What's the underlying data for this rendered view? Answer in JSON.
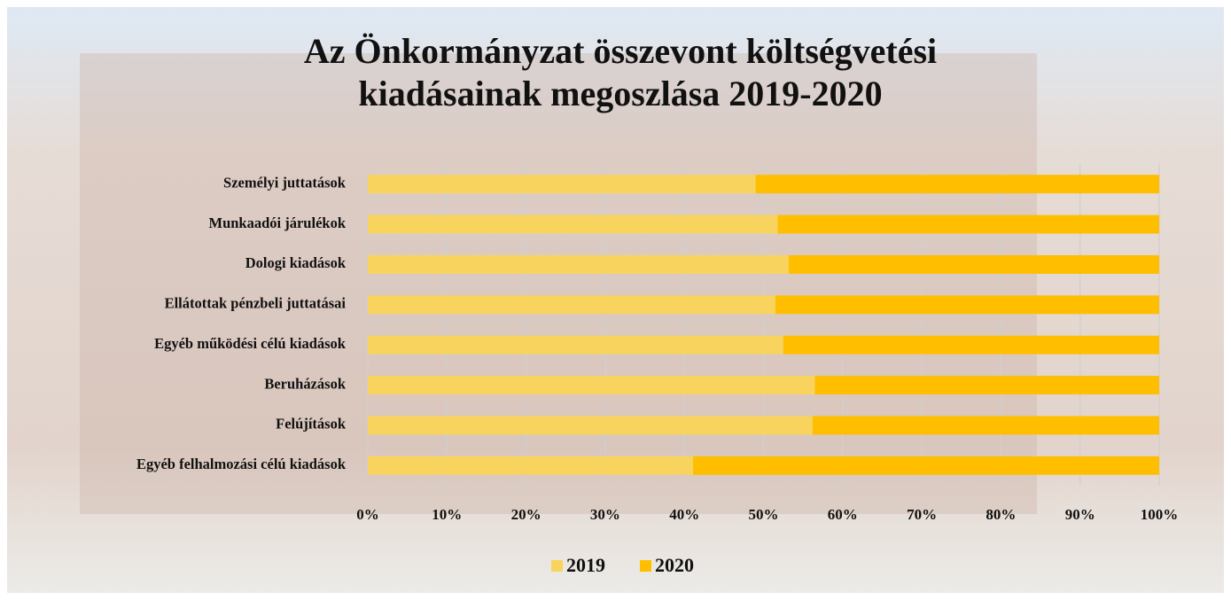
{
  "chart_data": {
    "type": "stacked-barh",
    "title": [
      "Az Önkormányzat összevont költségvetési",
      "kiadásainak megoszlása 2019-2020"
    ],
    "categories": [
      "Személyi juttatások",
      "Munkaadói járulékok",
      "Dologi  kiadások",
      "Ellátottak pénzbeli juttatásai",
      "Egyéb működési célú kiadások",
      "Beruházások",
      "Felújítások",
      "Egyéb felhalmozási célú kiadások"
    ],
    "series": [
      {
        "name": "2019",
        "color": "#f8d35e",
        "values": [
          49,
          51.8,
          53.2,
          51.5,
          52.5,
          56.5,
          56.2,
          41.1
        ]
      },
      {
        "name": "2020",
        "color": "#ffbf00",
        "values": [
          51,
          48.2,
          46.8,
          48.5,
          47.5,
          43.5,
          43.8,
          58.9
        ]
      }
    ],
    "xlim": [
      0,
      100
    ],
    "xticks": [
      {
        "value": 0,
        "label": "0%"
      },
      {
        "value": 10,
        "label": "10%"
      },
      {
        "value": 20,
        "label": "20%"
      },
      {
        "value": 30,
        "label": "30%"
      },
      {
        "value": 40,
        "label": "40%"
      },
      {
        "value": 50,
        "label": "50%"
      },
      {
        "value": 60,
        "label": "60%"
      },
      {
        "value": 70,
        "label": "70%"
      },
      {
        "value": 80,
        "label": "80%"
      },
      {
        "value": 90,
        "label": "90%"
      },
      {
        "value": 100,
        "label": "100%"
      }
    ],
    "grid": true,
    "legend": "bottom"
  }
}
